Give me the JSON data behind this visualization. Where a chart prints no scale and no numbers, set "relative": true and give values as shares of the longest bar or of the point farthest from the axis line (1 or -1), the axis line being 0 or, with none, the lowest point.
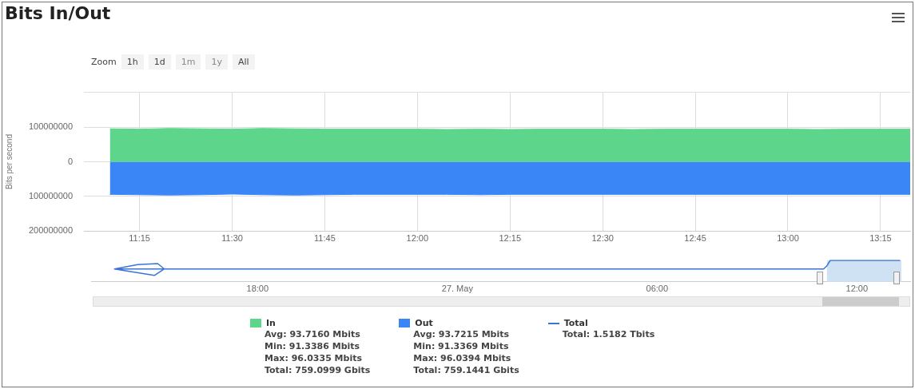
{
  "chart_data": [
    {
      "type": "area",
      "title": "Bits In/Out",
      "ylabel": "Bits per second",
      "x": [
        11.17,
        11.25,
        11.33,
        11.42,
        11.5,
        11.58,
        11.67,
        11.75,
        11.83,
        11.92,
        12,
        12.08,
        12.17,
        12.25,
        12.33,
        12.42,
        12.5,
        12.58,
        12.67,
        12.75,
        12.83,
        12.92,
        13,
        13.08,
        13.17,
        13.25,
        13.33
      ],
      "series": [
        {
          "name": "In",
          "color": "#5dd68c",
          "values": [
            95000000,
            94000000,
            96000000,
            95000000,
            94000000,
            96000000,
            95000000,
            94000000,
            94000000,
            94000000,
            94000000,
            93000000,
            94000000,
            93000000,
            94000000,
            94000000,
            94000000,
            93000000,
            94000000,
            94000000,
            94000000,
            94000000,
            94000000,
            93000000,
            94000000,
            94000000,
            94000000
          ]
        },
        {
          "name": "Out",
          "color": "#3b86f7",
          "values": [
            -94000000,
            -95000000,
            -96000000,
            -95000000,
            -93000000,
            -95000000,
            -96000000,
            -95000000,
            -94000000,
            -94000000,
            -94000000,
            -94000000,
            -95000000,
            -94000000,
            -94000000,
            -94000000,
            -94000000,
            -94000000,
            -94000000,
            -94000000,
            -94000000,
            -94000000,
            -94000000,
            -94000000,
            -94000000,
            -94000000,
            -94000000
          ]
        }
      ],
      "xlim": [
        11.1,
        13.33
      ],
      "xticks": [
        {
          "value": 11.25,
          "label": "11:15"
        },
        {
          "value": 11.5,
          "label": "11:30"
        },
        {
          "value": 11.75,
          "label": "11:45"
        },
        {
          "value": 12,
          "label": "12:00"
        },
        {
          "value": 12.25,
          "label": "12:15"
        },
        {
          "value": 12.5,
          "label": "12:30"
        },
        {
          "value": 12.75,
          "label": "12:45"
        },
        {
          "value": 13,
          "label": "13:00"
        },
        {
          "value": 13.25,
          "label": "13:15"
        }
      ],
      "ylim": [
        -200000000,
        200000000
      ],
      "yticks": [
        {
          "value": -200000000,
          "label": "200000000"
        },
        {
          "value": -100000000,
          "label": "100000000"
        },
        0,
        100000000,
        {
          "value": 200000000,
          "label": null
        }
      ],
      "grid": true,
      "legend": "bottom",
      "marker": "none",
      "annotations": [
        "Avg: 93.7160 Mbits\nMin: 91.3386 Mbits\nMax: 96.0335 Mbits\nTotal: 759.0999 Gbits",
        "Avg: 93.7215 Mbits\nMin: 91.3369 Mbits\nMax: 96.0394 Mbits\nTotal: 759.1441 Gbits",
        "Total: 1.5182 Tbits"
      ]
    },
    {
      "type": "line",
      "relative": true,
      "series": [
        {
          "name": "Total",
          "color": "#3a74d8",
          "x": [
            "--05-26T13:42",
            "--05-26T14:24",
            "--05-26T15:00",
            "--05-26T15:12",
            "--05-26T14:54",
            "--05-26T14:18",
            "--05-26T13:42",
            "--05-26T15:48",
            "--05-26T20:00",
            "--05-27T01:00",
            "--05-27T06:00",
            "--05-27T11:00",
            "--05-27T11:06",
            "--05-27T11:12",
            "--05-27T12:00",
            "--05-27T13:18"
          ],
          "values": [
            0.6,
            0.8,
            0.85,
            0.6,
            0.3,
            0.45,
            0.6,
            0.6,
            0.6,
            0.6,
            0.6,
            0.6,
            0.75,
            1,
            1,
            1
          ]
        }
      ],
      "xlim": [
        "--05-26T13:00",
        "--05-27T13:36"
      ],
      "xticks": [
        {
          "value": "--05-26T18:00",
          "label": "18:00"
        },
        {
          "value": "--05-27T00:00",
          "label": "27. May"
        },
        {
          "value": "--05-27T06:00",
          "label": "06:00"
        },
        {
          "value": "--05-27T12:00",
          "label": "12:00"
        }
      ],
      "bands": [
        {
          "axis": "x",
          "from": "--05-27T11:06",
          "to": "--05-27T13:20",
          "color": "#cfe2f3"
        }
      ],
      "grid": false,
      "legend": "bottom",
      "marker": "none",
      "annotations": [
        "Zoom",
        "1h",
        "1d",
        "1m",
        "1y",
        "All"
      ]
    }
  ]
}
